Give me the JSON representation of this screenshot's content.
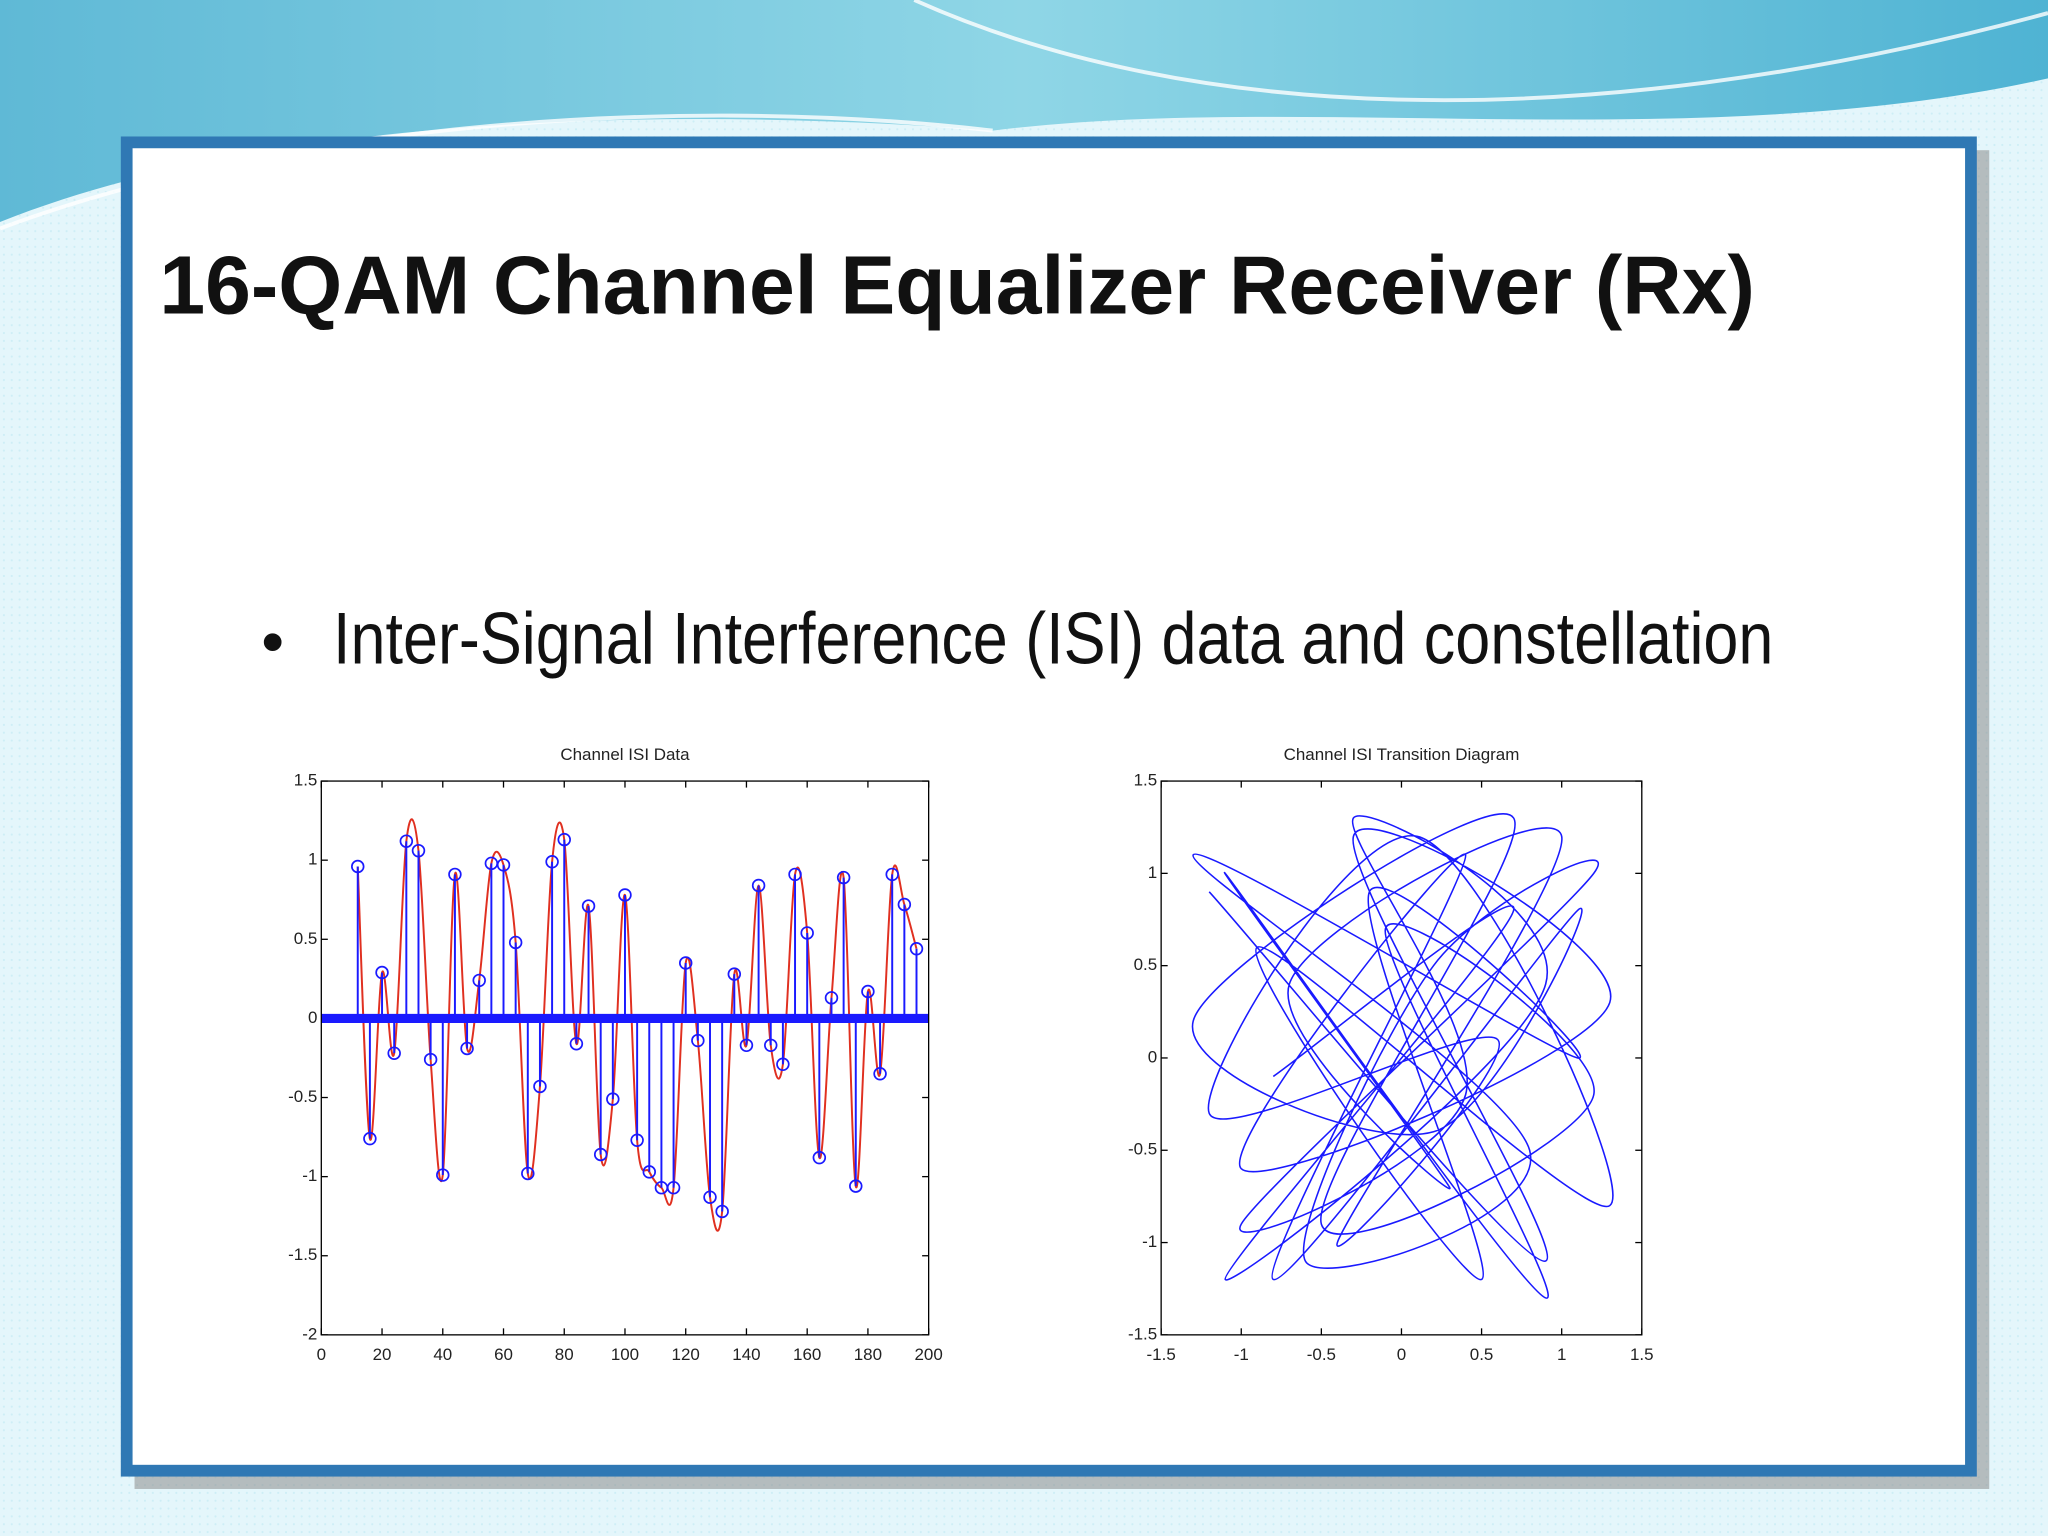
{
  "slide": {
    "title": "16-QAM Channel Equalizer Receiver (Rx)",
    "bullet": "Inter-Signal Interference (ISI) data and constellation"
  },
  "chart_data": [
    {
      "type": "stem",
      "title": "Channel ISI Data",
      "xlim": [
        0,
        200
      ],
      "ylim": [
        -2,
        1.5
      ],
      "xticks": [
        0,
        20,
        40,
        60,
        80,
        100,
        120,
        140,
        160,
        180,
        200
      ],
      "yticks": [
        -2,
        -1.5,
        -1,
        -0.5,
        0,
        0.5,
        1,
        1.5
      ],
      "series": [
        {
          "color": "#1a1aff",
          "curve_color": "#e03020",
          "x": [
            12,
            16,
            20,
            24,
            28,
            32,
            36,
            40,
            44,
            48,
            52,
            56,
            60,
            64,
            68,
            72,
            76,
            80,
            84,
            88,
            92,
            96,
            100,
            104,
            108,
            112,
            116,
            120,
            124,
            128,
            132,
            136,
            140,
            144,
            148,
            152,
            156,
            160,
            164,
            168,
            172,
            176,
            180,
            184,
            188,
            192,
            196
          ],
          "values": [
            0.96,
            -0.76,
            0.29,
            -0.22,
            1.12,
            1.06,
            -0.26,
            -0.99,
            0.91,
            -0.19,
            0.24,
            0.98,
            0.97,
            0.48,
            -0.98,
            -0.43,
            0.99,
            1.13,
            -0.16,
            0.71,
            -0.86,
            -0.51,
            0.78,
            -0.77,
            -0.97,
            -1.07,
            -1.07,
            0.35,
            -0.14,
            -1.13,
            -1.22,
            0.28,
            -0.17,
            0.84,
            -0.17,
            -0.29,
            0.91,
            0.54,
            -0.88,
            0.13,
            0.89,
            -1.06,
            0.17,
            -0.35,
            0.91,
            0.72,
            0.44
          ]
        }
      ]
    },
    {
      "type": "line",
      "title": "Channel ISI Transition Diagram",
      "xlim": [
        -1.5,
        1.5
      ],
      "ylim": [
        -1.5,
        1.5
      ],
      "xticks": [
        -1.5,
        -1,
        -0.5,
        0,
        0.5,
        1,
        1.5
      ],
      "yticks": [
        -1.5,
        -1,
        -0.5,
        0,
        0.5,
        1,
        1.5
      ],
      "series": [
        {
          "color": "#1a1aff",
          "x": [
            -1.2,
            0.9,
            -0.3,
            1.3,
            -1.0,
            0.4,
            -0.8,
            1.1,
            0.2,
            -1.3,
            0.7,
            -0.5,
            1.2,
            -0.1,
            0.9,
            -1.1,
            0.3,
            -0.7,
            1.0,
            -0.4,
            0.6,
            -1.2,
            0.1,
            1.3,
            -0.9,
            0.5,
            -0.2,
            1.1,
            -1.3,
            0.8,
            -0.6,
            0.2,
            1.2,
            -1.0,
            0.4,
            -0.3,
            0.9,
            -1.1,
            0.7,
            -0.8
          ],
          "values": [
            0.9,
            -1.1,
            1.2,
            0.3,
            -0.6,
            1.1,
            -1.2,
            0.8,
            -0.4,
            0.2,
            1.3,
            -0.9,
            -0.2,
            0.7,
            -1.3,
            1.0,
            -0.7,
            0.4,
            1.2,
            -1.0,
            0.1,
            -0.3,
            1.2,
            -0.8,
            0.6,
            -1.2,
            0.9,
            0.0,
            1.1,
            -0.5,
            -1.1,
            0.5,
            1.0,
            -0.9,
            -0.2,
            1.3,
            0.4,
            -1.2,
            0.8,
            -0.1
          ]
        }
      ]
    }
  ]
}
